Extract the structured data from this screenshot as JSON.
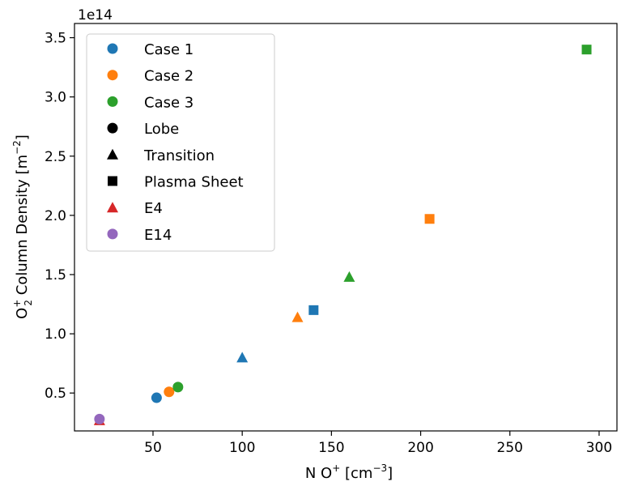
{
  "chart_data": {
    "type": "scatter",
    "xlabel": {
      "base": "N O",
      "sup": "+",
      "unit_open": " [cm",
      "unit_sup": "−3",
      "unit_close": "]"
    },
    "ylabel": {
      "prefix": "O",
      "sup": "+",
      "sub": "2",
      "middle": " Column Density [m",
      "unit_sup": "−2",
      "unit_close": "]"
    },
    "y_offset_text": "1e14",
    "xlim": [
      6,
      310
    ],
    "ylim": [
      0.18,
      3.62
    ],
    "x_ticks": [
      50,
      100,
      150,
      200,
      250,
      300
    ],
    "y_ticks": [
      0.5,
      1.0,
      1.5,
      2.0,
      2.5,
      3.0,
      3.5
    ],
    "x_tick_labels": [
      "50",
      "100",
      "150",
      "200",
      "250",
      "300"
    ],
    "y_tick_labels": [
      "0.5",
      "1.0",
      "1.5",
      "2.0",
      "2.5",
      "3.0",
      "3.5"
    ],
    "colors": {
      "case1": "#1f77b4",
      "case2": "#ff7f0e",
      "case3": "#2ca02c",
      "e4": "#d62728",
      "e14": "#9467bd",
      "black": "#000000"
    },
    "legend_position": "upper-left",
    "legend": [
      {
        "label": "Case 1",
        "marker": "circle",
        "color": "case1"
      },
      {
        "label": "Case 2",
        "marker": "circle",
        "color": "case2"
      },
      {
        "label": "Case 3",
        "marker": "circle",
        "color": "case3"
      },
      {
        "label": "Lobe",
        "marker": "circle",
        "color": "black"
      },
      {
        "label": "Transition",
        "marker": "triangle",
        "color": "black"
      },
      {
        "label": "Plasma Sheet",
        "marker": "square",
        "color": "black"
      },
      {
        "label": "E4",
        "marker": "triangle",
        "color": "e4"
      },
      {
        "label": "E14",
        "marker": "circle",
        "color": "e14"
      }
    ],
    "points": [
      {
        "series": "E4",
        "region": "Transition",
        "marker": "triangle",
        "color": "e4",
        "x": 20,
        "y": 0.27
      },
      {
        "series": "E14",
        "region": "Lobe",
        "marker": "circle",
        "color": "e14",
        "x": 20,
        "y": 0.28
      },
      {
        "series": "Case 1",
        "region": "Lobe",
        "marker": "circle",
        "color": "case1",
        "x": 52,
        "y": 0.46
      },
      {
        "series": "Case 2",
        "region": "Lobe",
        "marker": "circle",
        "color": "case2",
        "x": 59,
        "y": 0.51
      },
      {
        "series": "Case 3",
        "region": "Lobe",
        "marker": "circle",
        "color": "case3",
        "x": 64,
        "y": 0.55
      },
      {
        "series": "Case 1",
        "region": "Transition",
        "marker": "triangle",
        "color": "case1",
        "x": 100,
        "y": 0.8
      },
      {
        "series": "Case 2",
        "region": "Transition",
        "marker": "triangle",
        "color": "case2",
        "x": 131,
        "y": 1.14
      },
      {
        "series": "Case 1",
        "region": "Plasma Sheet",
        "marker": "square",
        "color": "case1",
        "x": 140,
        "y": 1.2
      },
      {
        "series": "Case 3",
        "region": "Transition",
        "marker": "triangle",
        "color": "case3",
        "x": 160,
        "y": 1.48
      },
      {
        "series": "Case 2",
        "region": "Plasma Sheet",
        "marker": "square",
        "color": "case2",
        "x": 205,
        "y": 1.97
      },
      {
        "series": "Case 3",
        "region": "Plasma Sheet",
        "marker": "square",
        "color": "case3",
        "x": 293,
        "y": 3.4
      }
    ]
  }
}
